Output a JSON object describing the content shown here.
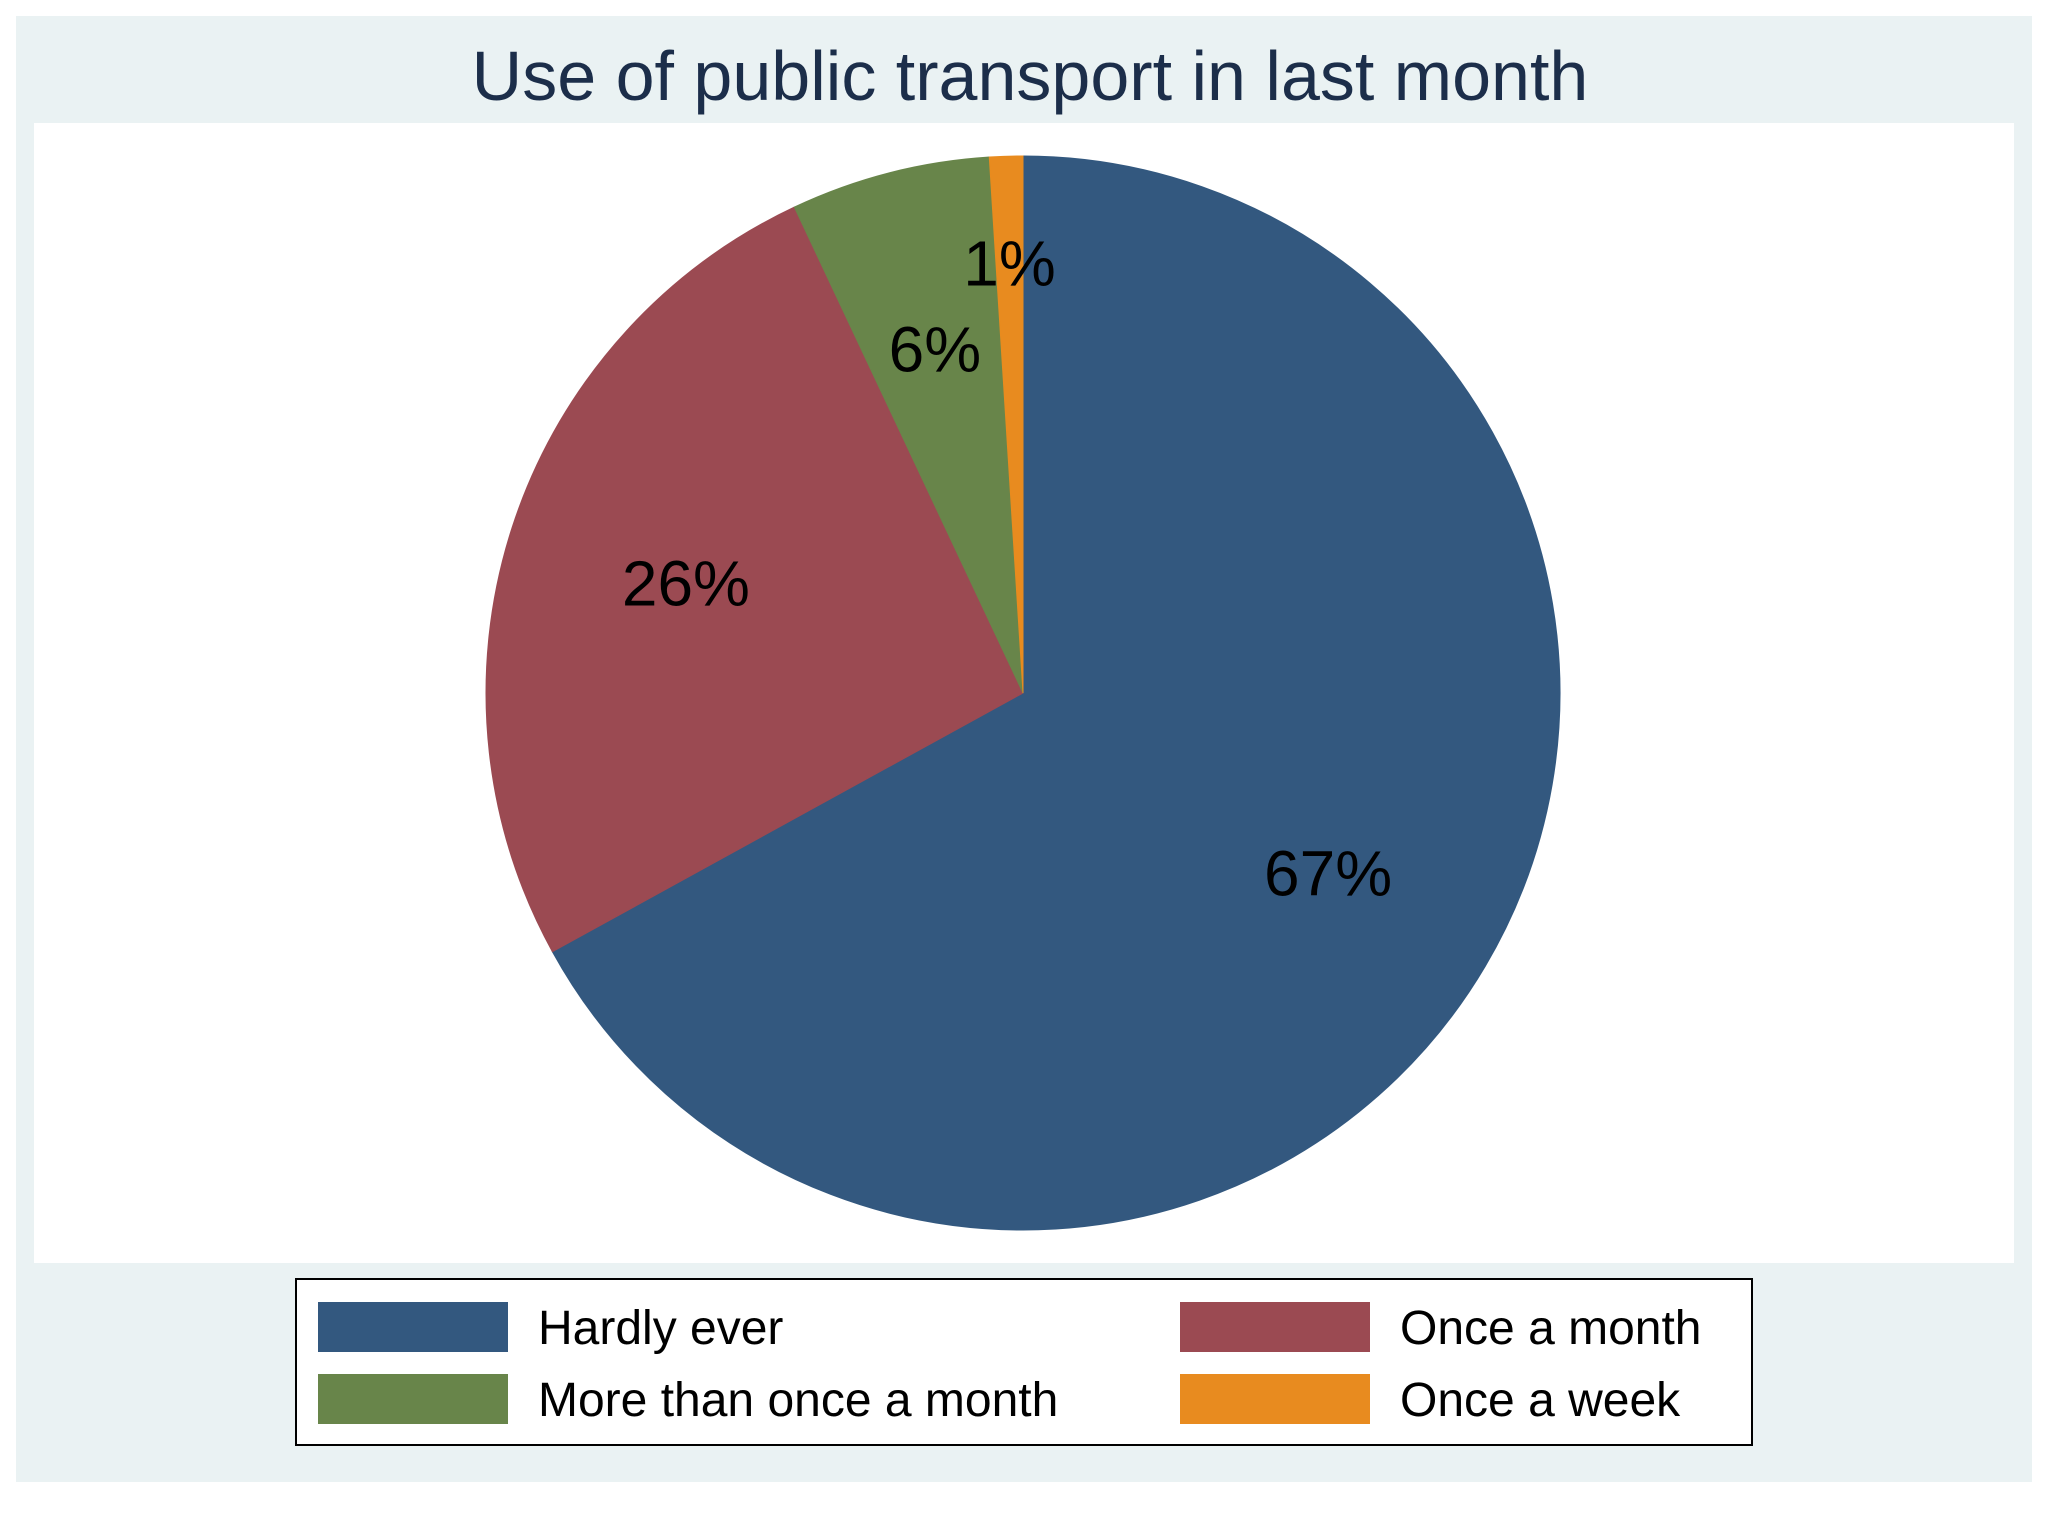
{
  "chart_data": {
    "type": "pie",
    "title": "Use of public transport in last month",
    "start_angle_deg": 0,
    "direction": "clockwise",
    "slices": [
      {
        "label": "Hardly ever",
        "value": 67,
        "display": "67%",
        "color": "#33587f"
      },
      {
        "label": "Once a month",
        "value": 26,
        "display": "26%",
        "color": "#9b4a52"
      },
      {
        "label": "More than once a month",
        "value": 6,
        "display": "6%",
        "color": "#68854a"
      },
      {
        "label": "Once a week",
        "value": 1,
        "display": "1%",
        "color": "#e88b1f"
      }
    ],
    "legend": {
      "position": "bottom",
      "columns": 2,
      "entries": [
        "Hardly ever",
        "Once a month",
        "More than once a month",
        "Once a week"
      ]
    }
  },
  "colors": {
    "outer_background": "#eaf2f3",
    "plot_background": "#ffffff",
    "title": "#1c2e4a"
  }
}
